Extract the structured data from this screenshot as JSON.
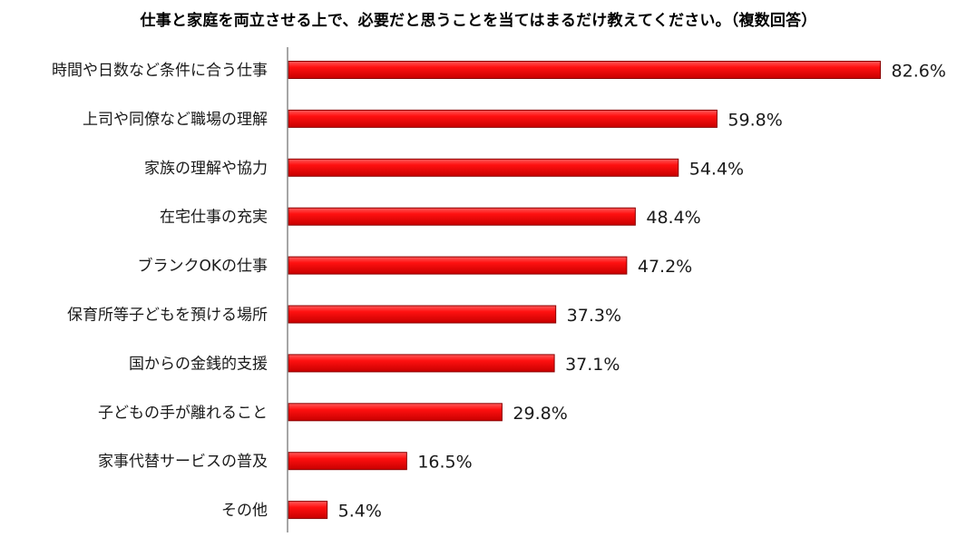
{
  "chart_data": {
    "type": "bar",
    "orientation": "horizontal",
    "title": "仕事と家庭を両立させる上で、必要だと思うことを当てはまるだけ教えてください。（複数回答）",
    "categories": [
      "時間や日数など条件に合う仕事",
      "上司や同僚など職場の理解",
      "家族の理解や協力",
      "在宅仕事の充実",
      "ブランクOKの仕事",
      "保育所等子どもを預ける場所",
      "国からの金銭的支援",
      "子どもの手が離れること",
      "家事代替サービスの普及",
      "その他"
    ],
    "values": [
      82.6,
      59.8,
      54.4,
      48.4,
      47.2,
      37.3,
      37.1,
      29.8,
      16.5,
      5.4
    ],
    "value_labels": [
      "82.6%",
      "59.8%",
      "54.4%",
      "48.4%",
      "47.2%",
      "37.3%",
      "37.1%",
      "29.8%",
      "16.5%",
      "5.4%"
    ],
    "unit": "%",
    "xlim": [
      0,
      100
    ],
    "grid": false,
    "legend": "none",
    "bar_color": "#ee0000"
  }
}
